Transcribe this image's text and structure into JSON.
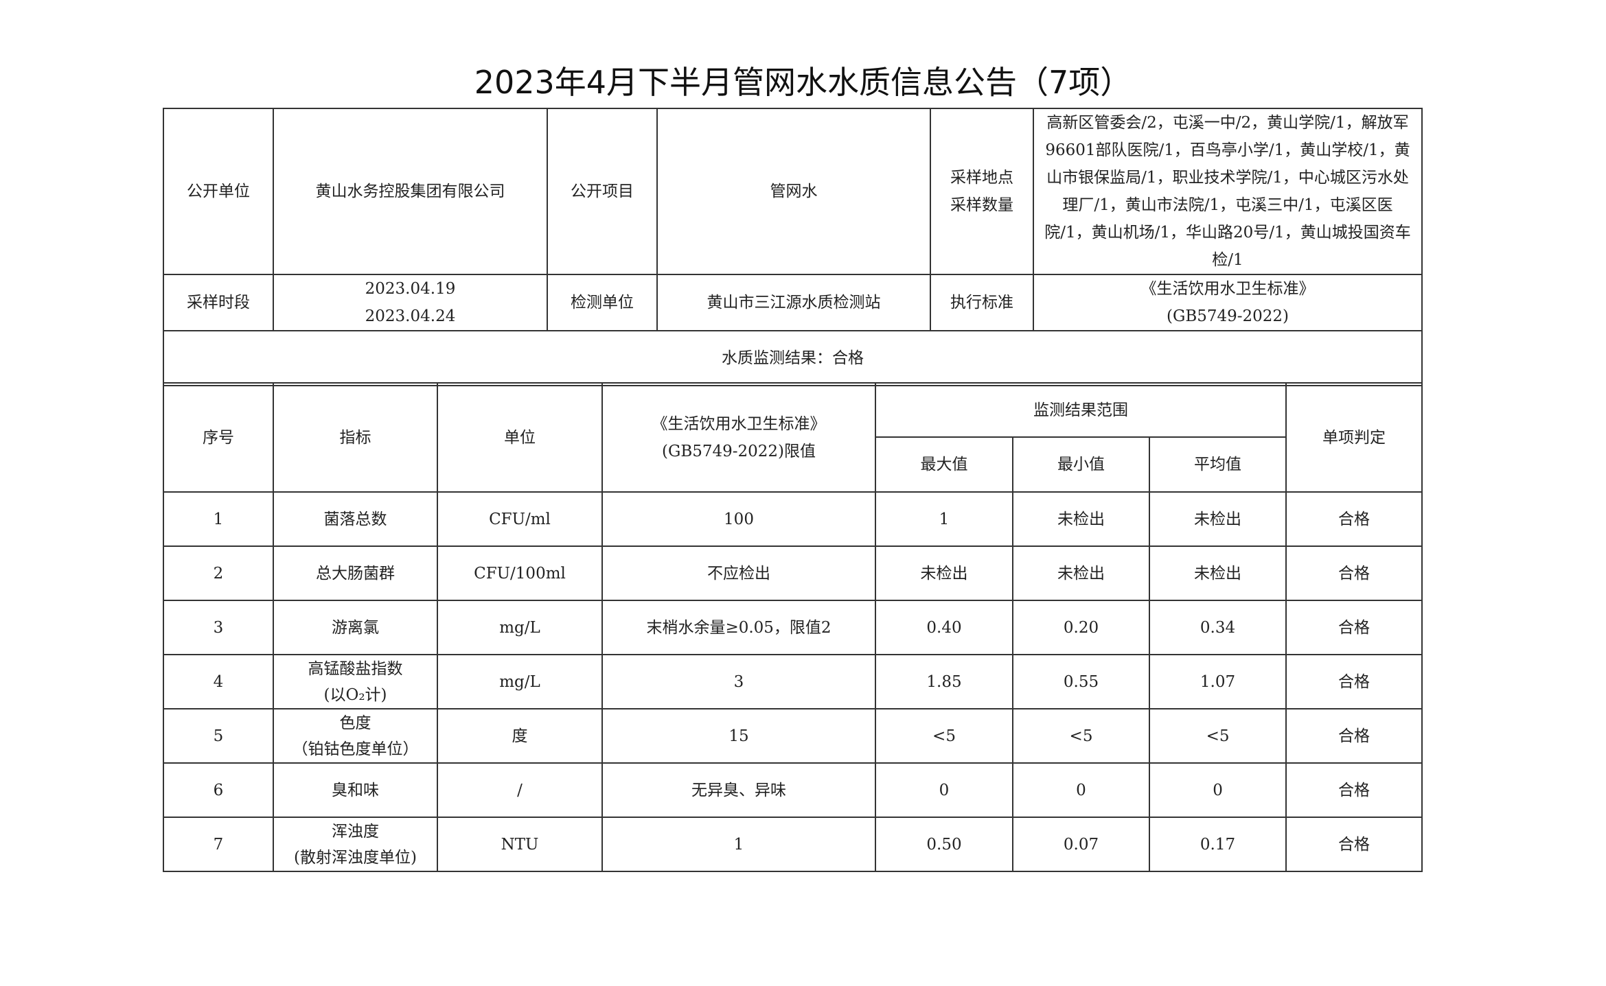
{
  "title": "2023年4月下半月管网水水质信息公告（7项）",
  "info": {
    "unit_label": "公开单位",
    "unit_value": "黄山水务控股集团有限公司",
    "item_label": "公开项目",
    "item_value": "管网水",
    "sites_label_1": "采样地点",
    "sites_label_2": "采样数量",
    "sites_value": "高新区管委会/2，屯溪一中/2，黄山学院/1，解放军96601部队医院/1，百鸟亭小学/1，黄山学校/1，黄山市银保监局/1，职业技术学院/1，中心城区污水处理厂/1，黄山市法院/1，屯溪三中/1，屯溪区医院/1，黄山机场/1，华山路20号/1，黄山城投国资车检/1",
    "period_label": "采样时段",
    "period_start": "2023.04.19",
    "period_end": "2023.04.24",
    "lab_label": "检测单位",
    "lab_value": "黄山市三江源水质检测站",
    "std_label": "执行标准",
    "std_value_1": "《生活饮用水卫生标准》",
    "std_value_2": "(GB5749-2022)",
    "result": "水质监测结果：合格"
  },
  "headers": {
    "no": "序号",
    "indicator": "指标",
    "unit": "单位",
    "limit_1": "《生活饮用水卫生标准》",
    "limit_2": "(GB5749-2022)限值",
    "range": "监测结果范围",
    "max": "最大值",
    "min": "最小值",
    "avg": "平均值",
    "verdict": "单项判定"
  },
  "rows": [
    {
      "no": "1",
      "indicator": "菌落总数",
      "indicator_2": "",
      "unit": "CFU/ml",
      "limit": "100",
      "max": "1",
      "min": "未检出",
      "avg": "未检出",
      "verdict": "合格"
    },
    {
      "no": "2",
      "indicator": "总大肠菌群",
      "indicator_2": "",
      "unit": "CFU/100ml",
      "limit": "不应检出",
      "max": "未检出",
      "min": "未检出",
      "avg": "未检出",
      "verdict": "合格"
    },
    {
      "no": "3",
      "indicator": "游离氯",
      "indicator_2": "",
      "unit": "mg/L",
      "limit": "末梢水余量≥0.05，限值2",
      "max": "0.40",
      "min": "0.20",
      "avg": "0.34",
      "verdict": "合格"
    },
    {
      "no": "4",
      "indicator": "高锰酸盐指数",
      "indicator_2": "(以O₂计)",
      "unit": "mg/L",
      "limit": "3",
      "max": "1.85",
      "min": "0.55",
      "avg": "1.07",
      "verdict": "合格"
    },
    {
      "no": "5",
      "indicator": "色度",
      "indicator_2": "（铂钴色度单位）",
      "unit": "度",
      "limit": "15",
      "max": "<5",
      "min": "<5",
      "avg": "<5",
      "verdict": "合格"
    },
    {
      "no": "6",
      "indicator": "臭和味",
      "indicator_2": "",
      "unit": "/",
      "limit": "无异臭、异味",
      "max": "0",
      "min": "0",
      "avg": "0",
      "verdict": "合格"
    },
    {
      "no": "7",
      "indicator": "浑浊度",
      "indicator_2": "(散射浑浊度单位)",
      "unit": "NTU",
      "limit": "1",
      "max": "0.50",
      "min": "0.07",
      "avg": "0.17",
      "verdict": "合格"
    }
  ]
}
